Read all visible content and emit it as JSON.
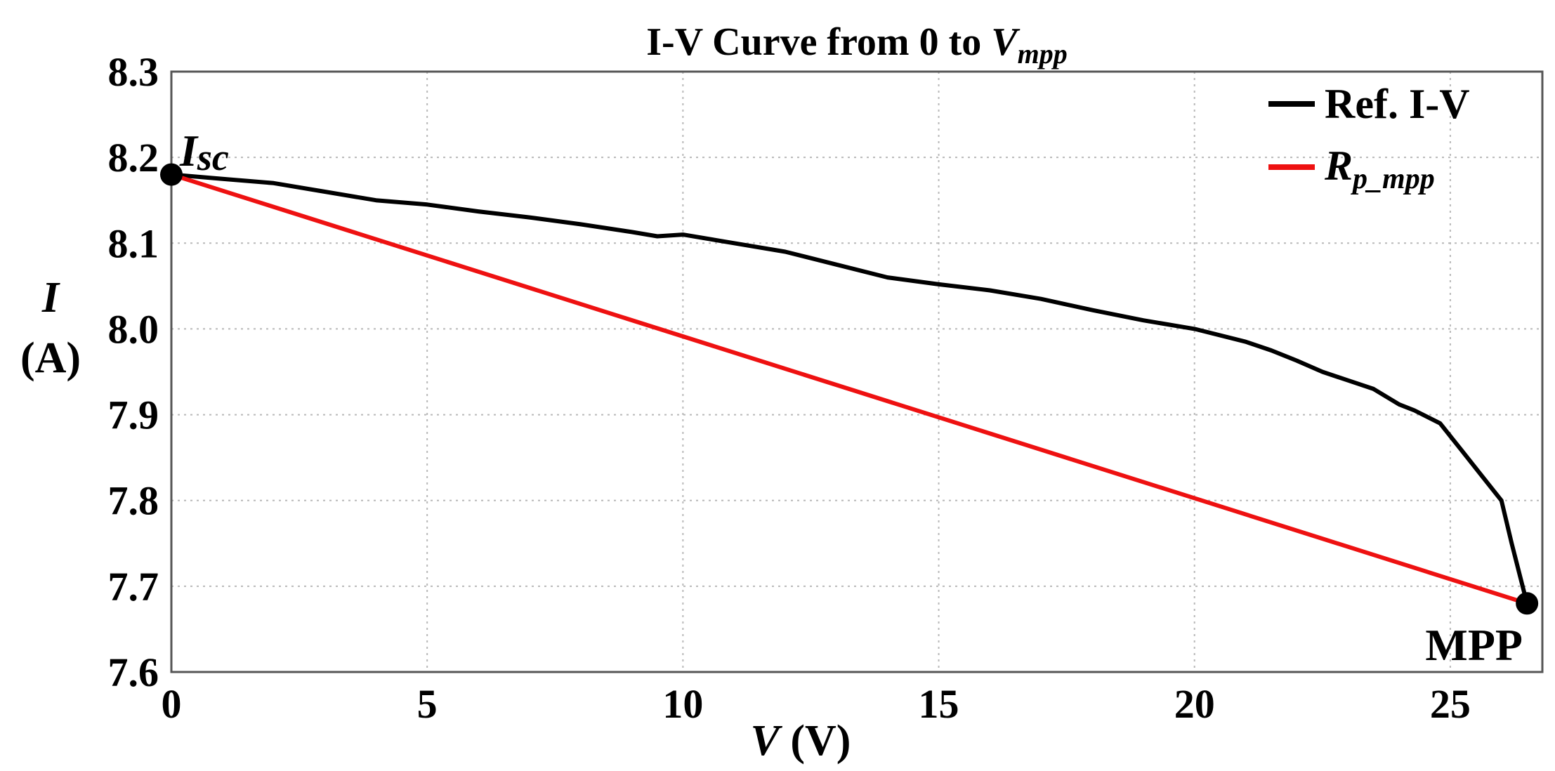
{
  "chart_data": {
    "type": "line",
    "title": {
      "text": "I-V Curve from 0 to ",
      "var_main": "V",
      "var_sub": "mpp"
    },
    "xlabel": {
      "var": "V",
      "unit": " (V)"
    },
    "ylabel": {
      "var": "I",
      "unit": "(A)"
    },
    "xlim": [
      0,
      26.8
    ],
    "ylim": [
      7.6,
      8.3
    ],
    "xticks": [
      0,
      5,
      10,
      15,
      20,
      25
    ],
    "xtick_labels": [
      "0",
      "5",
      "10",
      "15",
      "20",
      "25"
    ],
    "yticks": [
      7.6,
      7.7,
      7.8,
      7.9,
      8.0,
      8.1,
      8.2,
      8.3
    ],
    "ytick_labels": [
      "7.6",
      "7.7",
      "7.8",
      "7.9",
      "8.0",
      "8.1",
      "8.2",
      "8.3"
    ],
    "grid": true,
    "legend_position": "top-right",
    "series": [
      {
        "name": "Ref. I-V",
        "legend_label": "Ref. I-V",
        "color": "#000000",
        "x": [
          0,
          1,
          2,
          3,
          4,
          5,
          6,
          7,
          8,
          9,
          9.5,
          10,
          11,
          12,
          13,
          14,
          15,
          16,
          17,
          18,
          19,
          20,
          21,
          21.5,
          22,
          22.5,
          23,
          23.5,
          24,
          24.3,
          24.8,
          25.2,
          25.6,
          26,
          26.2,
          26.5
        ],
        "y": [
          8.18,
          8.175,
          8.17,
          8.16,
          8.15,
          8.145,
          8.137,
          8.13,
          8.122,
          8.113,
          8.108,
          8.11,
          8.1,
          8.09,
          8.075,
          8.06,
          8.052,
          8.045,
          8.035,
          8.022,
          8.01,
          8.0,
          7.985,
          7.975,
          7.963,
          7.95,
          7.94,
          7.93,
          7.912,
          7.905,
          7.89,
          7.86,
          7.83,
          7.8,
          7.75,
          7.68
        ]
      },
      {
        "name": "R_p_mpp",
        "legend_label_main": "R",
        "legend_label_sub": "p_mpp",
        "color": "#ee1111",
        "x": [
          0,
          26.5
        ],
        "y": [
          8.18,
          7.68
        ]
      }
    ],
    "annotations": [
      {
        "id": "isc",
        "label_main": "I",
        "label_sub": "sc",
        "x": 0,
        "y": 8.18
      },
      {
        "id": "mpp",
        "label": "MPP",
        "x": 26.5,
        "y": 7.68
      }
    ]
  }
}
